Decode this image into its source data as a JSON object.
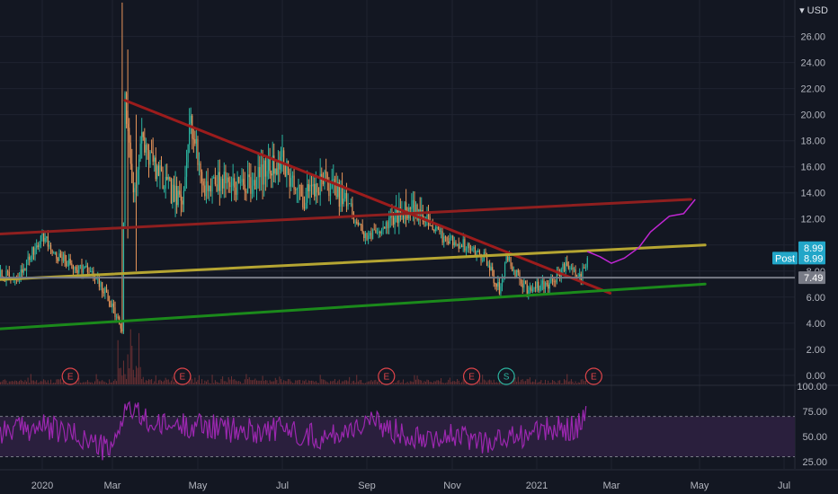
{
  "currency": "USD",
  "colors": {
    "background": "#131722",
    "grid": "#1f2330",
    "axis_text": "#b2b5be",
    "candle": "#e8955a",
    "candle_up": "#2bb5a0",
    "volume": "#8a3a3a",
    "resistance_line": "#9c1c1c",
    "upper_channel": "#8f1f1f",
    "mid_line": "#b5a532",
    "support_line": "#1b8a1b",
    "projection": "#c026d3",
    "grey_line": "#787b86",
    "rsi_line": "#9c27b0",
    "rsi_band": "#2a1f3d",
    "tag_blue": "#22a6c8",
    "tag_grey": "#787b86"
  },
  "chart_data": [
    {
      "type": "line",
      "panel": "price",
      "currency": "USD",
      "y_ticks": [
        "26.00",
        "24.00",
        "22.00",
        "20.00",
        "18.00",
        "16.00",
        "14.00",
        "12.00",
        "10.00",
        "8.00",
        "6.00",
        "4.00",
        "2.00",
        "0.00"
      ],
      "ylim": [
        -0.7,
        28.8
      ],
      "x_ticks": [
        "2020",
        "Mar",
        "May",
        "Jul",
        "Sep",
        "Nov",
        "2021",
        "Mar",
        "May",
        "Jul"
      ],
      "x_tick_dates": [
        "2020-01-01",
        "2020-03-01",
        "2020-05-01",
        "2020-07-01",
        "2020-09-01",
        "2020-11-01",
        "2021-01-01",
        "2021-03-01",
        "2021-05-01",
        "2021-07-01"
      ],
      "series": [
        {
          "kind": "candles",
          "x": [
            "2019-11-20",
            "2019-12-10",
            "2020-01-01",
            "2020-01-12",
            "2020-01-25",
            "2020-02-10",
            "2020-02-25",
            "2020-03-08",
            "2020-03-10",
            "2020-03-16",
            "2020-03-22",
            "2020-04-05",
            "2020-04-20",
            "2020-04-25",
            "2020-05-05",
            "2020-05-20",
            "2020-06-05",
            "2020-06-20",
            "2020-07-01",
            "2020-07-15",
            "2020-08-01",
            "2020-08-15",
            "2020-09-01",
            "2020-09-20",
            "2020-10-01",
            "2020-10-10",
            "2020-10-25",
            "2020-11-10",
            "2020-11-25",
            "2020-12-05",
            "2020-12-10",
            "2020-12-25",
            "2021-01-10",
            "2021-01-25",
            "2021-02-05",
            "2021-02-10"
          ],
          "y": [
            8.0,
            7.2,
            10.8,
            9.2,
            8.5,
            8.0,
            6.2,
            3.5,
            21.0,
            14.0,
            18.0,
            15.0,
            13.0,
            20.0,
            14.5,
            15.0,
            14.5,
            15.8,
            16.5,
            13.5,
            15.0,
            13.5,
            10.5,
            12.0,
            13.0,
            12.5,
            10.5,
            10.0,
            9.0,
            6.5,
            9.0,
            6.5,
            7.0,
            8.5,
            7.5,
            9.0
          ]
        },
        {
          "kind": "trendline",
          "name": "",
          "color_key": "resistance_line",
          "x": [
            "2020-03-10",
            "2021-02-28"
          ],
          "y": [
            21.1,
            6.3
          ]
        },
        {
          "kind": "trendline",
          "name": "",
          "color_key": "upper_channel",
          "x": [
            "2019-11-15",
            "2021-04-25"
          ],
          "y": [
            10.8,
            13.5
          ]
        },
        {
          "kind": "trendline",
          "name": "",
          "color_key": "mid_line",
          "x": [
            "2019-11-15",
            "2021-05-05"
          ],
          "y": [
            7.3,
            10.0
          ]
        },
        {
          "kind": "trendline",
          "name": "",
          "color_key": "support_line",
          "x": [
            "2019-11-15",
            "2021-05-05"
          ],
          "y": [
            3.5,
            7.0
          ]
        },
        {
          "kind": "projection",
          "name": "",
          "color_key": "projection",
          "x": [
            "2021-02-10",
            "2021-02-20",
            "2021-03-01",
            "2021-03-10",
            "2021-03-20",
            "2021-03-28",
            "2021-04-10",
            "2021-04-20",
            "2021-04-28"
          ],
          "y": [
            9.5,
            9.1,
            8.6,
            9.0,
            9.8,
            11.0,
            12.2,
            12.4,
            13.5
          ]
        }
      ],
      "horizontal_line": {
        "value": 7.49,
        "label": "7.49"
      },
      "price_tags": [
        {
          "value": 8.99,
          "label": "8.99"
        },
        {
          "value": 8.99,
          "name": "Post",
          "label": "8.99"
        }
      ],
      "event_markers": [
        {
          "label": "E",
          "date": "2020-01-25",
          "kind": "earnings"
        },
        {
          "label": "E",
          "date": "2020-04-20",
          "kind": "earnings"
        },
        {
          "label": "E",
          "date": "2020-09-15",
          "kind": "earnings"
        },
        {
          "label": "E",
          "date": "2020-11-15",
          "kind": "earnings"
        },
        {
          "label": "S",
          "date": "2020-12-10",
          "kind": "split"
        },
        {
          "label": "E",
          "date": "2021-02-15",
          "kind": "earnings"
        }
      ]
    },
    {
      "type": "line",
      "panel": "rsi",
      "y_ticks": [
        "100.00",
        "75.00",
        "50.00",
        "25.00"
      ],
      "ylim": [
        18,
        100
      ],
      "band": [
        30,
        70
      ],
      "series": [
        {
          "name": "",
          "x": [
            "2019-11-20",
            "2020-01-01",
            "2020-02-01",
            "2020-03-01",
            "2020-03-10",
            "2020-04-01",
            "2020-05-01",
            "2020-06-01",
            "2020-07-01",
            "2020-08-01",
            "2020-09-01",
            "2020-10-01",
            "2020-11-01",
            "2020-12-01",
            "2021-01-01",
            "2021-02-01",
            "2021-02-10"
          ],
          "y": [
            55,
            60,
            50,
            35,
            80,
            60,
            62,
            55,
            58,
            48,
            65,
            52,
            50,
            45,
            55,
            60,
            70
          ]
        }
      ]
    }
  ]
}
